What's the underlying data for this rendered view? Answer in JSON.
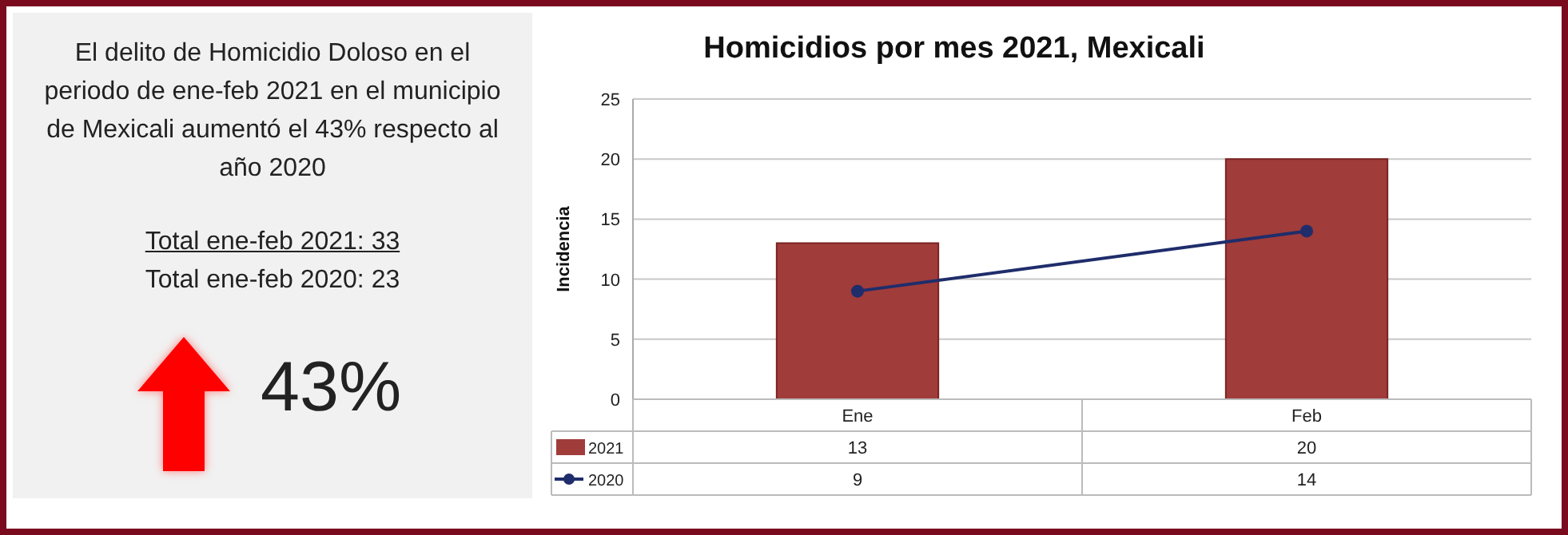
{
  "chart_data": [
    {
      "type": "other",
      "annotations": [
        "El delito de Homicidio Doloso  en el periodo de ene-feb  2021 en el municipio de Mexicali aumentó el 43%  respecto al año 2020",
        "Total ene-feb  2021:  33",
        "Total ene-feb  2020:  23",
        "43%"
      ]
    },
    {
      "type": "bar",
      "title": "Homicidios por mes 2021, Mexicali",
      "ylabel": "Incidencia",
      "categories": [
        "Ene",
        "Feb"
      ],
      "series": [
        {
          "name": "2021",
          "type": "bar",
          "color": "#a03c3a",
          "values": [
            13,
            20
          ]
        },
        {
          "name": "2020",
          "type": "line",
          "color": "#1f2d6b",
          "values": [
            9,
            14
          ]
        }
      ],
      "ylim": [
        0,
        25
      ],
      "yticks": [
        0,
        5,
        10,
        15,
        20,
        25
      ],
      "grid": "y",
      "data_labels": true,
      "legend": "bottom left",
      "marker": "circle"
    }
  ]
}
